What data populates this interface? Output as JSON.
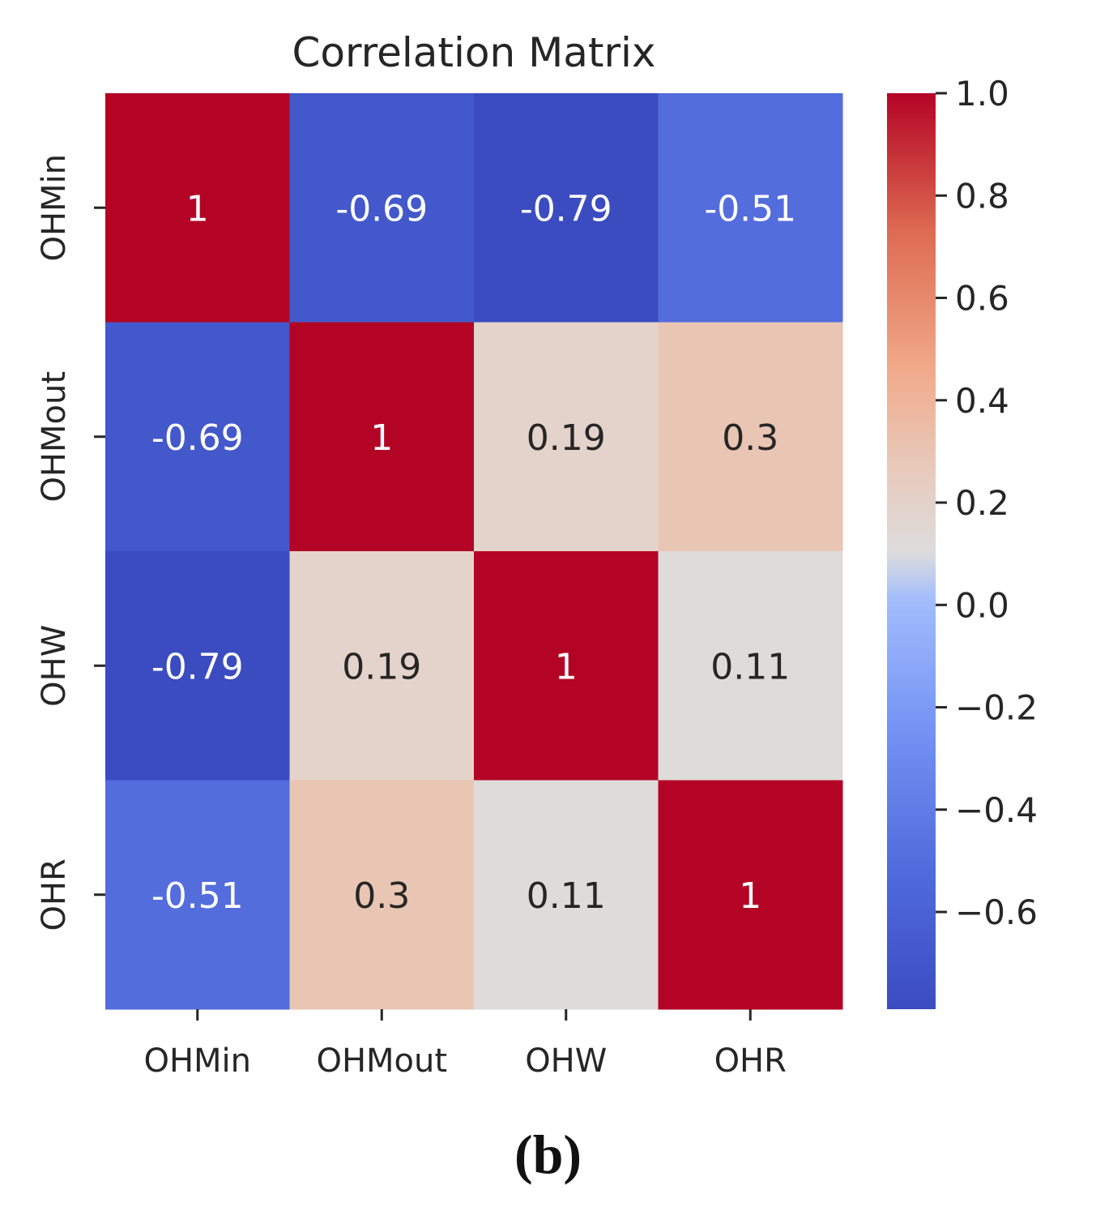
{
  "chart_data": {
    "type": "heatmap",
    "title": "Correlation Matrix",
    "row_labels": [
      "OHMin",
      "OHMout",
      "OHW",
      "OHR"
    ],
    "col_labels": [
      "OHMin",
      "OHMout",
      "OHW",
      "OHR"
    ],
    "values": [
      [
        1,
        -0.69,
        -0.79,
        -0.51
      ],
      [
        -0.69,
        1,
        0.19,
        0.3
      ],
      [
        -0.79,
        0.19,
        1,
        0.11
      ],
      [
        -0.51,
        0.3,
        0.11,
        1
      ]
    ],
    "annotations": [
      [
        "1",
        "-0.69",
        "-0.79",
        "-0.51"
      ],
      [
        "-0.69",
        "1",
        "0.19",
        "0.3"
      ],
      [
        "-0.79",
        "0.19",
        "1",
        "0.11"
      ],
      [
        "-0.51",
        "0.3",
        "0.11",
        "1"
      ]
    ],
    "colormap": "coolwarm",
    "colorbar": {
      "vmin": -0.79,
      "vmax": 1.0,
      "ticks": [
        1.0,
        0.8,
        0.6,
        0.4,
        0.2,
        0.0,
        -0.2,
        -0.4,
        -0.6
      ],
      "tick_labels": [
        "1.0",
        "0.8",
        "0.6",
        "0.4",
        "0.2",
        "0.0",
        "−0.2",
        "−0.4",
        "−0.6"
      ]
    },
    "colors": {
      "cool_end": "#3b4cc0",
      "neutral": "#dddddd",
      "warm_end": "#b40426",
      "text_light": "#ffffff",
      "text_dark": "#262626"
    }
  },
  "panel_label": "(b)"
}
